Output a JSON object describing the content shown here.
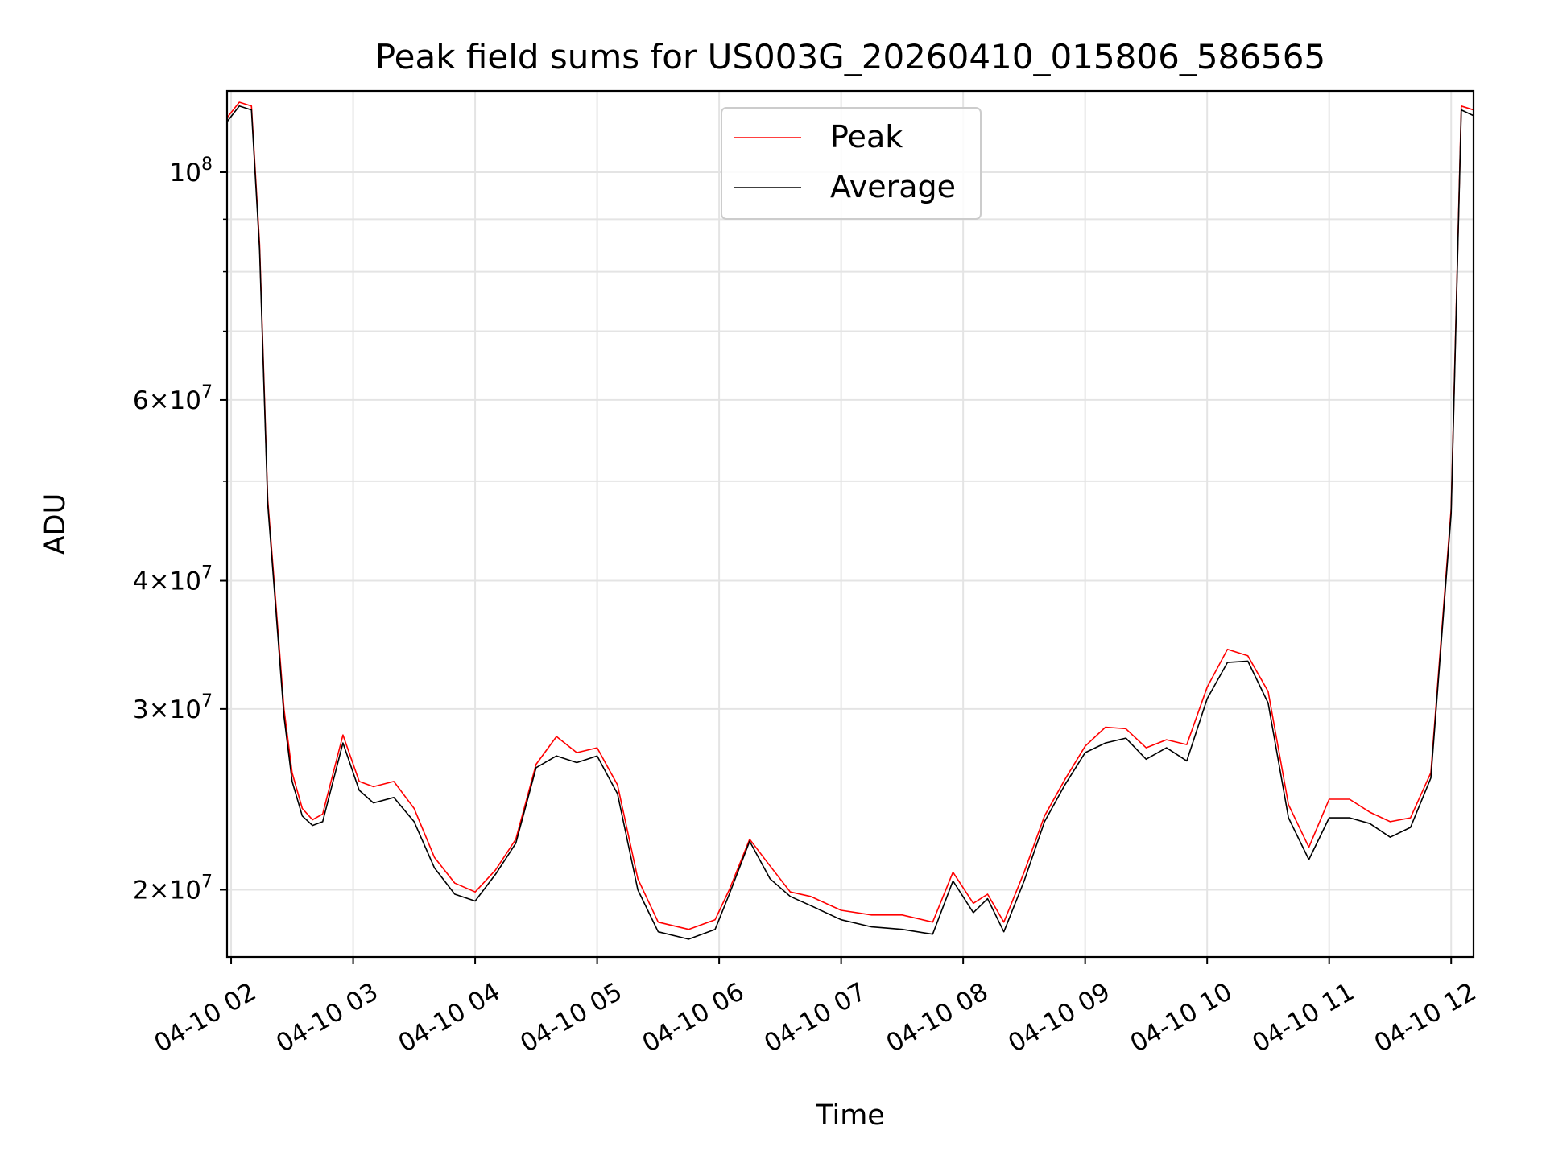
{
  "chart_data": {
    "type": "line",
    "title": "Peak field sums for US003G_20260410_015806_586565",
    "xlabel": "Time",
    "ylabel": "ADU",
    "yscale": "log",
    "ylim": [
      17200000,
      120000000
    ],
    "xlim": [
      "2026-04-10T01:58",
      "2026-04-10T12:11"
    ],
    "grid": true,
    "legend_position": "upper-center",
    "x_tick_labels": [
      "04-10 02",
      "04-10 03",
      "04-10 04",
      "04-10 05",
      "04-10 06",
      "04-10 07",
      "04-10 08",
      "04-10 09",
      "04-10 10",
      "04-10 11",
      "04-10 12"
    ],
    "x_tick_times": [
      "2026-04-10T02:00",
      "2026-04-10T03:00",
      "2026-04-10T04:00",
      "2026-04-10T05:00",
      "2026-04-10T06:00",
      "2026-04-10T07:00",
      "2026-04-10T08:00",
      "2026-04-10T09:00",
      "2026-04-10T10:00",
      "2026-04-10T11:00",
      "2026-04-10T12:00"
    ],
    "y_ticks": [
      {
        "value": 100000000,
        "mantissa": "",
        "exponent": "8"
      },
      {
        "value": 60000000,
        "mantissa": "6",
        "exponent": "7"
      },
      {
        "value": 40000000,
        "mantissa": "4",
        "exponent": "7"
      },
      {
        "value": 30000000,
        "mantissa": "3",
        "exponent": "7"
      },
      {
        "value": 20000000,
        "mantissa": "2",
        "exponent": "7"
      }
    ],
    "y_minor_ticks": [
      50000000,
      70000000,
      80000000,
      90000000
    ],
    "x": [
      "2026-04-10T01:58",
      "2026-04-10T02:04",
      "2026-04-10T02:10",
      "2026-04-10T02:14",
      "2026-04-10T02:18",
      "2026-04-10T02:22",
      "2026-04-10T02:26",
      "2026-04-10T02:30",
      "2026-04-10T02:35",
      "2026-04-10T02:40",
      "2026-04-10T02:45",
      "2026-04-10T02:55",
      "2026-04-10T03:03",
      "2026-04-10T03:10",
      "2026-04-10T03:20",
      "2026-04-10T03:30",
      "2026-04-10T03:40",
      "2026-04-10T03:50",
      "2026-04-10T04:00",
      "2026-04-10T04:10",
      "2026-04-10T04:20",
      "2026-04-10T04:30",
      "2026-04-10T04:40",
      "2026-04-10T04:50",
      "2026-04-10T05:00",
      "2026-04-10T05:10",
      "2026-04-10T05:20",
      "2026-04-10T05:30",
      "2026-04-10T05:45",
      "2026-04-10T05:58",
      "2026-04-10T06:05",
      "2026-04-10T06:15",
      "2026-04-10T06:25",
      "2026-04-10T06:35",
      "2026-04-10T06:45",
      "2026-04-10T07:00",
      "2026-04-10T07:15",
      "2026-04-10T07:30",
      "2026-04-10T07:45",
      "2026-04-10T07:55",
      "2026-04-10T08:05",
      "2026-04-10T08:12",
      "2026-04-10T08:20",
      "2026-04-10T08:30",
      "2026-04-10T08:40",
      "2026-04-10T08:50",
      "2026-04-10T09:00",
      "2026-04-10T09:10",
      "2026-04-10T09:20",
      "2026-04-10T09:30",
      "2026-04-10T09:40",
      "2026-04-10T09:50",
      "2026-04-10T10:00",
      "2026-04-10T10:10",
      "2026-04-10T10:20",
      "2026-04-10T10:30",
      "2026-04-10T10:40",
      "2026-04-10T10:50",
      "2026-04-10T11:00",
      "2026-04-10T11:10",
      "2026-04-10T11:20",
      "2026-04-10T11:30",
      "2026-04-10T11:40",
      "2026-04-10T11:50",
      "2026-04-10T12:00",
      "2026-04-10T12:05",
      "2026-04-10T12:11"
    ],
    "series": [
      {
        "name": "Peak",
        "color": "#ff0000",
        "values": [
          113000000,
          117000000,
          116000000,
          85000000,
          48000000,
          38000000,
          30000000,
          26000000,
          24000000,
          23400000,
          23700000,
          28300000,
          25500000,
          25200000,
          25500000,
          24000000,
          21500000,
          20300000,
          19900000,
          20900000,
          22400000,
          26500000,
          28200000,
          27200000,
          27500000,
          25300000,
          20500000,
          18600000,
          18300000,
          18700000,
          20000000,
          22400000,
          21100000,
          19900000,
          19700000,
          19100000,
          18900000,
          18900000,
          18600000,
          20800000,
          19400000,
          19800000,
          18600000,
          20800000,
          23600000,
          25600000,
          27600000,
          28800000,
          28700000,
          27500000,
          28000000,
          27700000,
          31500000,
          34300000,
          33800000,
          31200000,
          24200000,
          22000000,
          24500000,
          24500000,
          23800000,
          23300000,
          23500000,
          26000000,
          47000000,
          116000000,
          115000000
        ]
      },
      {
        "name": "Average",
        "color": "#000000",
        "values": [
          112000000,
          116000000,
          115000000,
          84000000,
          47500000,
          37500000,
          29500000,
          25500000,
          23600000,
          23100000,
          23300000,
          27800000,
          25000000,
          24300000,
          24600000,
          23300000,
          21000000,
          19800000,
          19500000,
          20700000,
          22200000,
          26300000,
          27000000,
          26600000,
          27000000,
          24800000,
          20000000,
          18200000,
          17900000,
          18300000,
          19800000,
          22300000,
          20500000,
          19700000,
          19300000,
          18700000,
          18400000,
          18300000,
          18100000,
          20400000,
          19000000,
          19600000,
          18200000,
          20400000,
          23300000,
          25300000,
          27200000,
          27800000,
          28100000,
          26800000,
          27500000,
          26700000,
          30700000,
          33300000,
          33400000,
          30400000,
          23500000,
          21400000,
          23500000,
          23500000,
          23200000,
          22500000,
          23000000,
          25700000,
          46500000,
          115000000,
          113500000
        ]
      }
    ]
  }
}
